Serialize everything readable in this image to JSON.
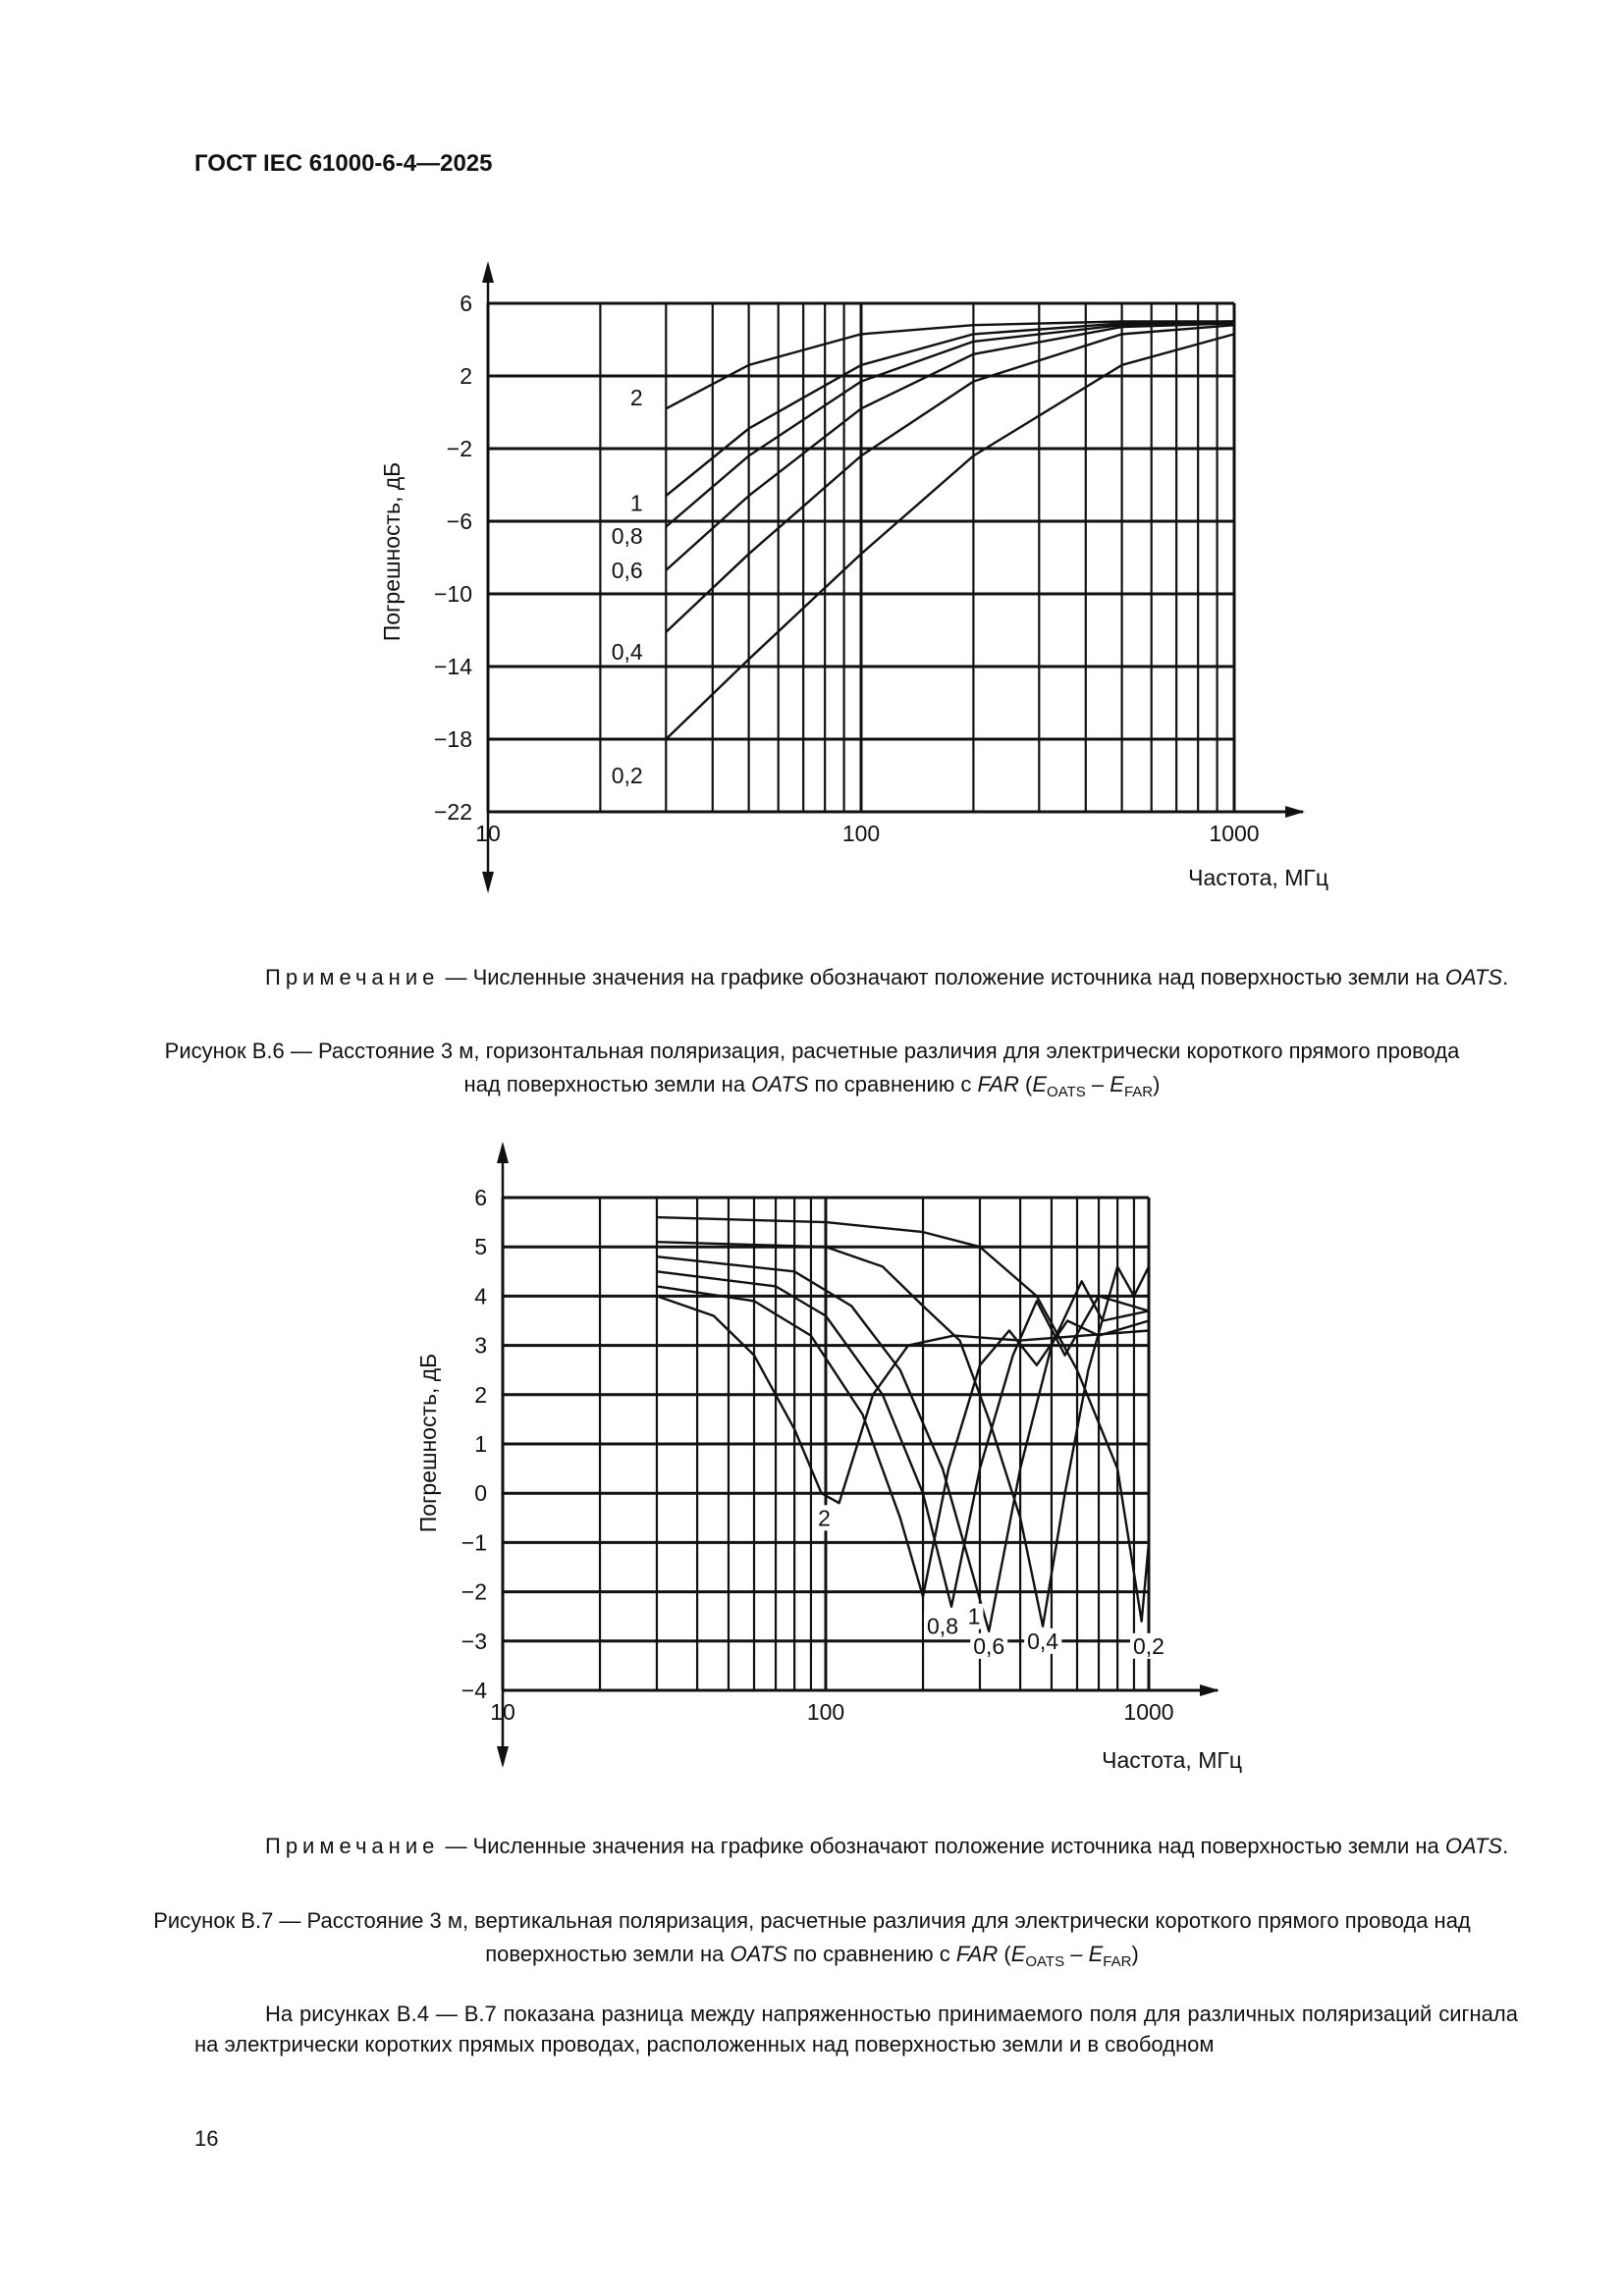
{
  "header": {
    "title": "ГОСТ IEC 61000-6-4—2025"
  },
  "figure_b6": {
    "note": {
      "label": "Примечание",
      "text": " — Численные значения на графике обозначают положение источника над поверхностью земли на ",
      "oats": "OATS",
      "end": "."
    },
    "caption": {
      "p1": "Рисунок В.6 — Расстояние 3 м, горизонтальная поляризация, расчетные различия для электрически короткого прямого провода над поверхностью земли на ",
      "oats": "OATS",
      "p2": " по сравнению с ",
      "far": "FAR",
      "p3": " (",
      "e1": "E",
      "s1": "OATS",
      "minus": " – ",
      "e2": "E",
      "s2": "FAR",
      "p4": ")"
    }
  },
  "figure_b7": {
    "note": {
      "label": "Примечание",
      "text": " — Численные значения на графике обозначают положение источника над поверхностью земли на ",
      "oats": "OATS",
      "end": "."
    },
    "caption": {
      "p1": "Рисунок В.7 — Расстояние 3 м, вертикальная поляризация, расчетные различия для электрически короткого прямого провода над поверхностью земли на ",
      "oats": "OATS",
      "p2": " по сравнению с ",
      "far": "FAR",
      "p3": " (",
      "e1": "E",
      "s1": "OATS",
      "minus": " – ",
      "e2": "E",
      "s2": "FAR",
      "p4": ")"
    }
  },
  "body": {
    "paragraph": "На рисунках В.4 — В.7 показана разница между напряженностью принимаемого поля для различных поляризаций сигнала на электрически коротких прямых проводах, расположенных над поверхностью земли и в свободном"
  },
  "page_number": "16",
  "chart_data": [
    {
      "type": "line",
      "title": "",
      "xlabel": "Частота, МГц",
      "ylabel": "Погрешность, дБ",
      "xscale": "log",
      "xlim": [
        10,
        1000
      ],
      "ylim": [
        -22,
        6
      ],
      "xticks": [
        10,
        100,
        1000
      ],
      "xtick_labels": [
        "10",
        "100",
        "1000"
      ],
      "yticks": [
        6,
        2,
        -2,
        -6,
        -10,
        -14,
        -18,
        -22
      ],
      "ytick_labels": [
        "6",
        "2",
        "−2",
        "−6",
        "−10",
        "−14",
        "−18",
        "−22"
      ],
      "grid": true,
      "series": [
        {
          "name": "0,2",
          "label_at": [
            26,
            -20
          ],
          "points": [
            [
              30,
              -18
            ],
            [
              50,
              -13.6
            ],
            [
              100,
              -7.8
            ],
            [
              200,
              -2.4
            ],
            [
              500,
              2.6
            ],
            [
              1000,
              4.3
            ]
          ]
        },
        {
          "name": "0,4",
          "label_at": [
            26,
            -13.2
          ],
          "points": [
            [
              30,
              -12.1
            ],
            [
              50,
              -7.8
            ],
            [
              100,
              -2.4
            ],
            [
              200,
              1.7
            ],
            [
              500,
              4.3
            ],
            [
              1000,
              4.8
            ]
          ]
        },
        {
          "name": "0,6",
          "label_at": [
            26,
            -8.7
          ],
          "points": [
            [
              30,
              -8.7
            ],
            [
              50,
              -4.6
            ],
            [
              100,
              0.2
            ],
            [
              200,
              3.2
            ],
            [
              500,
              4.7
            ],
            [
              1000,
              4.9
            ]
          ]
        },
        {
          "name": "0,8",
          "label_at": [
            26,
            -6.8
          ],
          "points": [
            [
              30,
              -6.3
            ],
            [
              50,
              -2.4
            ],
            [
              100,
              1.7
            ],
            [
              200,
              3.9
            ],
            [
              500,
              4.8
            ],
            [
              1000,
              4.9
            ]
          ]
        },
        {
          "name": "1",
          "label_at": [
            26,
            -5
          ],
          "points": [
            [
              30,
              -4.6
            ],
            [
              50,
              -0.9
            ],
            [
              100,
              2.6
            ],
            [
              200,
              4.3
            ],
            [
              500,
              4.9
            ],
            [
              1000,
              5.0
            ]
          ]
        },
        {
          "name": "2",
          "label_at": [
            26,
            0.8
          ],
          "points": [
            [
              30,
              0.2
            ],
            [
              50,
              2.6
            ],
            [
              100,
              4.3
            ],
            [
              200,
              4.8
            ],
            [
              500,
              5.0
            ],
            [
              1000,
              5.0
            ]
          ]
        }
      ]
    },
    {
      "type": "line",
      "title": "",
      "xlabel": "Частота, МГц",
      "ylabel": "Погрешность, дБ",
      "xscale": "log",
      "xlim": [
        10,
        1000
      ],
      "ylim": [
        -4,
        6
      ],
      "xticks": [
        10,
        100,
        1000
      ],
      "xtick_labels": [
        "10",
        "100",
        "1000"
      ],
      "yticks": [
        6,
        5,
        4,
        3,
        2,
        1,
        0,
        -1,
        -2,
        -3,
        -4
      ],
      "ytick_labels": [
        "6",
        "5",
        "4",
        "3",
        "2",
        "1",
        "0",
        "−1",
        "−2",
        "−3",
        "−4"
      ],
      "grid": true,
      "series": [
        {
          "name": "0,2",
          "label_at": [
            1000,
            -3.1
          ],
          "points": [
            [
              30,
              5.6
            ],
            [
              100,
              5.5
            ],
            [
              200,
              5.3
            ],
            [
              300,
              5.0
            ],
            [
              450,
              4.0
            ],
            [
              600,
              2.5
            ],
            [
              800,
              0.5
            ],
            [
              950,
              -2.6
            ],
            [
              1000,
              -1
            ]
          ]
        },
        {
          "name": "0,4",
          "label_at": [
            470,
            -3.0
          ],
          "points": [
            [
              30,
              5.1
            ],
            [
              100,
              5.0
            ],
            [
              150,
              4.6
            ],
            [
              200,
              3.8
            ],
            [
              260,
              3.1
            ],
            [
              320,
              1.5
            ],
            [
              400,
              -0.5
            ],
            [
              470,
              -2.7
            ],
            [
              550,
              0
            ],
            [
              650,
              2.5
            ],
            [
              800,
              4.6
            ],
            [
              900,
              4.0
            ],
            [
              1000,
              4.6
            ]
          ]
        },
        {
          "name": "0,6",
          "label_at": [
            320,
            -3.1
          ],
          "points": [
            [
              30,
              4.8
            ],
            [
              80,
              4.5
            ],
            [
              120,
              3.8
            ],
            [
              170,
              2.5
            ],
            [
              230,
              0.5
            ],
            [
              320,
              -2.8
            ],
            [
              400,
              0.5
            ],
            [
              500,
              3.0
            ],
            [
              620,
              4.3
            ],
            [
              720,
              3.5
            ],
            [
              1000,
              3.7
            ]
          ]
        },
        {
          "name": "0,8",
          "label_at": [
            230,
            -2.7
          ],
          "points": [
            [
              30,
              4.5
            ],
            [
              70,
              4.2
            ],
            [
              100,
              3.6
            ],
            [
              150,
              2.0
            ],
            [
              200,
              0
            ],
            [
              245,
              -2.3
            ],
            [
              300,
              0.5
            ],
            [
              380,
              2.8
            ],
            [
              450,
              3.9
            ],
            [
              550,
              2.8
            ],
            [
              700,
              4.0
            ],
            [
              1000,
              3.7
            ]
          ]
        },
        {
          "name": "1",
          "label_at": [
            200,
            -2.5
          ],
          "points": [
            [
              30,
              4.2
            ],
            [
              60,
              3.9
            ],
            [
              90,
              3.2
            ],
            [
              130,
              1.6
            ],
            [
              170,
              -0.5
            ],
            [
              200,
              -2.1
            ],
            [
              240,
              0.5
            ],
            [
              300,
              2.6
            ],
            [
              370,
              3.3
            ],
            [
              450,
              2.6
            ],
            [
              560,
              3.5
            ],
            [
              700,
              3.2
            ],
            [
              1000,
              3.5
            ]
          ]
        },
        {
          "name": "2",
          "label_at": [
            99,
            -0.5
          ],
          "points": [
            [
              30,
              4.0
            ],
            [
              45,
              3.6
            ],
            [
              60,
              2.8
            ],
            [
              80,
              1.3
            ],
            [
              97,
              0
            ],
            [
              110,
              -0.2
            ],
            [
              140,
              2.0
            ],
            [
              180,
              3.0
            ],
            [
              250,
              3.2
            ],
            [
              400,
              3.1
            ],
            [
              1000,
              3.3
            ]
          ]
        }
      ]
    }
  ]
}
